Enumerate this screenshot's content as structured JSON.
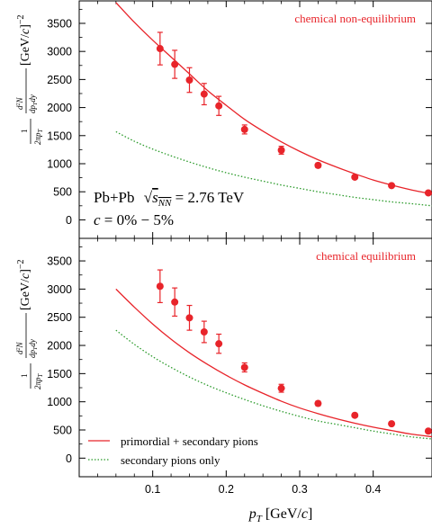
{
  "chart_data": [
    {
      "type": "scatter",
      "panel": "top",
      "annotation": "chemical non-equilibrium",
      "system_label": "Pb+Pb",
      "energy_label": "√s_NN = 2.76 TeV",
      "centrality_label": "c = 0% − 5%",
      "ylabel": "1/(2πp_T) d²N/(dp_T dy) [GeV/c]⁻²",
      "yticks": [
        "0",
        "500",
        "1000",
        "1500",
        "2000",
        "2500",
        "3000",
        "3500"
      ],
      "xlim": [
        0.0,
        0.48
      ],
      "ylim": [
        -330,
        3900
      ],
      "series": [
        {
          "kind": "data",
          "color": "#e8242a",
          "x": [
            0.11,
            0.13,
            0.15,
            0.17,
            0.19,
            0.225,
            0.275,
            0.325,
            0.375,
            0.425,
            0.475
          ],
          "y": [
            3050,
            2770,
            2490,
            2240,
            2030,
            1610,
            1240,
            970,
            760,
            610,
            480
          ],
          "err": [
            290,
            250,
            220,
            190,
            170,
            80,
            70,
            40,
            30,
            20,
            20
          ]
        },
        {
          "kind": "curve",
          "color": "#e8242a",
          "x": [
            0.05,
            0.075,
            0.1,
            0.125,
            0.15,
            0.175,
            0.2,
            0.225,
            0.25,
            0.275,
            0.3,
            0.325,
            0.35,
            0.375,
            0.4,
            0.425,
            0.45,
            0.48
          ],
          "y": [
            3870,
            3520,
            3200,
            2900,
            2600,
            2300,
            2040,
            1790,
            1580,
            1390,
            1220,
            1070,
            940,
            820,
            710,
            620,
            540,
            460
          ]
        },
        {
          "kind": "curve",
          "color": "#2a9a2a",
          "dashed": true,
          "x": [
            0.05,
            0.075,
            0.1,
            0.125,
            0.15,
            0.175,
            0.2,
            0.225,
            0.25,
            0.275,
            0.3,
            0.325,
            0.35,
            0.375,
            0.4,
            0.425,
            0.45,
            0.48
          ],
          "y": [
            1570,
            1400,
            1260,
            1140,
            1030,
            930,
            840,
            760,
            690,
            620,
            560,
            500,
            450,
            400,
            360,
            320,
            290,
            250
          ]
        }
      ]
    },
    {
      "type": "scatter",
      "panel": "bottom",
      "annotation": "chemical equilibrium",
      "ylabel": "1/(2πp_T) d²N/(dp_T dy) [GeV/c]⁻²",
      "xlabel": "p_T [GeV/c]",
      "xticks": [
        "0.1",
        "0.2",
        "0.3",
        "0.4"
      ],
      "yticks": [
        "0",
        "500",
        "1000",
        "1500",
        "2000",
        "2500",
        "3000",
        "3500"
      ],
      "xlim": [
        0.0,
        0.48
      ],
      "ylim": [
        -330,
        3900
      ],
      "legend": {
        "placement": "bottom-left",
        "entries": [
          "primordial + secondary pions",
          "secondary pions only"
        ]
      },
      "series": [
        {
          "kind": "data",
          "color": "#e8242a",
          "x": [
            0.11,
            0.13,
            0.15,
            0.17,
            0.19,
            0.225,
            0.275,
            0.325,
            0.375,
            0.425,
            0.475
          ],
          "y": [
            3050,
            2770,
            2490,
            2240,
            2030,
            1610,
            1240,
            970,
            760,
            610,
            480
          ],
          "err": [
            290,
            250,
            220,
            190,
            170,
            80,
            70,
            40,
            30,
            20,
            20
          ]
        },
        {
          "kind": "curve",
          "name": "primordial + secondary pions",
          "color": "#e8242a",
          "x": [
            0.05,
            0.075,
            0.1,
            0.125,
            0.15,
            0.175,
            0.2,
            0.225,
            0.25,
            0.275,
            0.3,
            0.325,
            0.35,
            0.375,
            0.4,
            0.425,
            0.45,
            0.48
          ],
          "y": [
            3000,
            2680,
            2380,
            2110,
            1870,
            1660,
            1470,
            1300,
            1150,
            1010,
            890,
            790,
            700,
            620,
            550,
            490,
            430,
            380
          ]
        },
        {
          "kind": "curve",
          "name": "secondary pions only",
          "color": "#2a9a2a",
          "dashed": true,
          "x": [
            0.05,
            0.075,
            0.1,
            0.125,
            0.15,
            0.175,
            0.2,
            0.225,
            0.25,
            0.275,
            0.3,
            0.325,
            0.35,
            0.375,
            0.4,
            0.425,
            0.45,
            0.48
          ],
          "y": [
            2270,
            2020,
            1800,
            1610,
            1440,
            1290,
            1160,
            1040,
            930,
            830,
            740,
            660,
            600,
            540,
            480,
            430,
            380,
            340
          ]
        }
      ]
    }
  ]
}
